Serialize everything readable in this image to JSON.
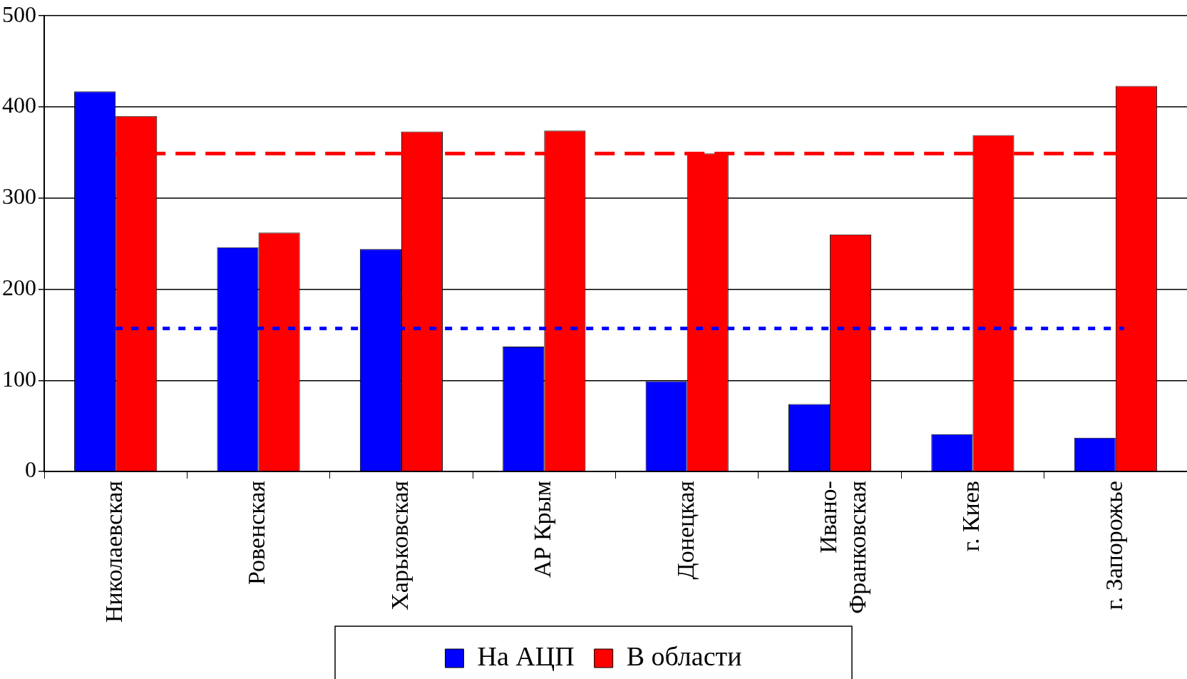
{
  "chart_data": {
    "type": "bar",
    "categories": [
      "Николаевская",
      "Ровенская",
      "Харьковская",
      "АР Крым",
      "Донецкая",
      "Ивано-Франковская",
      "г. Киев",
      "г. Запорожье"
    ],
    "series": [
      {
        "name": "На АЦП",
        "color": "#0000ff",
        "values": [
          417,
          246,
          244,
          137,
          99,
          74,
          41,
          37
        ]
      },
      {
        "name": "В области",
        "color": "#ff0000",
        "values": [
          390,
          262,
          373,
          374,
          349,
          260,
          369,
          423
        ]
      }
    ],
    "ylim": [
      0,
      500
    ],
    "yticks": [
      0,
      100,
      200,
      300,
      400,
      500
    ],
    "grid": "y",
    "legend": "bottom",
    "ref_lines": [
      {
        "axis": "y",
        "value": 349,
        "color": "#ff0000",
        "line_style": "dashed"
      },
      {
        "axis": "y",
        "value": 157,
        "color": "#0000ff",
        "line_style": "dotted"
      }
    ]
  }
}
